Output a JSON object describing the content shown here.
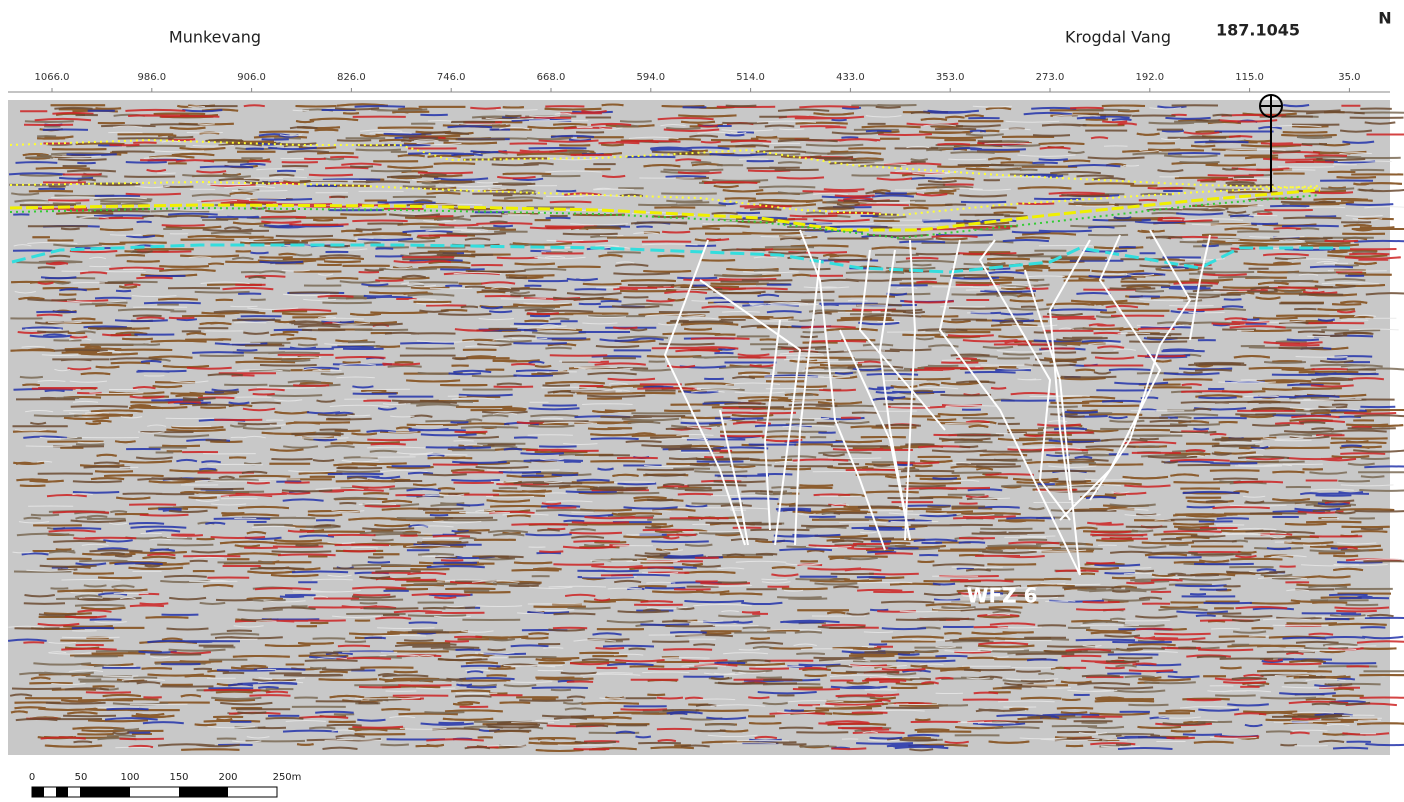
{
  "header": {
    "left_place": "Munkevang",
    "right_place": "Krogdal Vang",
    "line_id": "187.1045",
    "direction": "N"
  },
  "axis": {
    "ticks": [
      "1066.0",
      "986.0",
      "906.0",
      "826.0",
      "746.0",
      "668.0",
      "594.0",
      "514.0",
      "433.0",
      "353.0",
      "273.0",
      "192.0",
      "115.0",
      "35.0"
    ]
  },
  "annotation": {
    "label": "WFZ 6"
  },
  "scale_bar": {
    "labels": [
      "0",
      "50",
      "100",
      "150",
      "200",
      "250m"
    ]
  }
}
